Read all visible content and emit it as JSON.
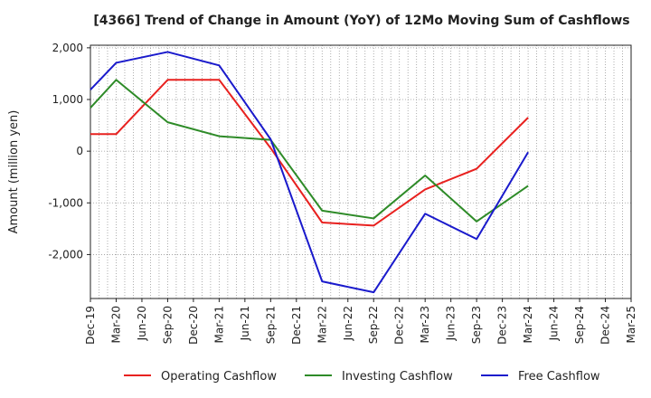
{
  "chart_data": {
    "type": "line",
    "title": "[4366]  Trend of Change in Amount (YoY) of 12Mo Moving Sum of Cashflows",
    "xlabel": "",
    "ylabel": "Amount (million yen)",
    "ylim": [
      -2850,
      2050
    ],
    "yticks": [
      2000,
      1000,
      0,
      -1000,
      -2000
    ],
    "ytick_labels": [
      "2,000",
      "1,000",
      "0",
      "-1,000",
      "-2,000"
    ],
    "grid": true,
    "legend_position": "bottom",
    "categories": [
      "Dec-19",
      "Mar-20",
      "Jun-20",
      "Sep-20",
      "Dec-20",
      "Mar-21",
      "Jun-21",
      "Sep-21",
      "Dec-21",
      "Mar-22",
      "Jun-22",
      "Sep-22",
      "Dec-22",
      "Mar-23",
      "Jun-23",
      "Sep-23",
      "Dec-23",
      "Mar-24",
      "Jun-24",
      "Sep-24",
      "Dec-24",
      "Mar-25"
    ],
    "series": [
      {
        "name": "Operating Cashflow",
        "color": "#e8211f",
        "values": [
          330,
          330,
          null,
          1380,
          null,
          1380,
          null,
          60,
          null,
          -1380,
          null,
          -1440,
          null,
          -740,
          null,
          -340,
          null,
          650,
          null,
          null,
          null,
          null
        ]
      },
      {
        "name": "Investing Cashflow",
        "color": "#2e8b28",
        "values": [
          840,
          1380,
          null,
          560,
          null,
          290,
          null,
          220,
          null,
          -1150,
          null,
          -1300,
          null,
          -470,
          null,
          -1360,
          null,
          -670,
          null,
          null,
          null,
          null
        ]
      },
      {
        "name": "Free Cashflow",
        "color": "#1a1acc",
        "values": [
          1190,
          1710,
          null,
          1920,
          null,
          1660,
          null,
          230,
          null,
          -2520,
          null,
          -2730,
          null,
          -1210,
          null,
          -1700,
          null,
          -20,
          null,
          null,
          null,
          null
        ]
      }
    ]
  }
}
